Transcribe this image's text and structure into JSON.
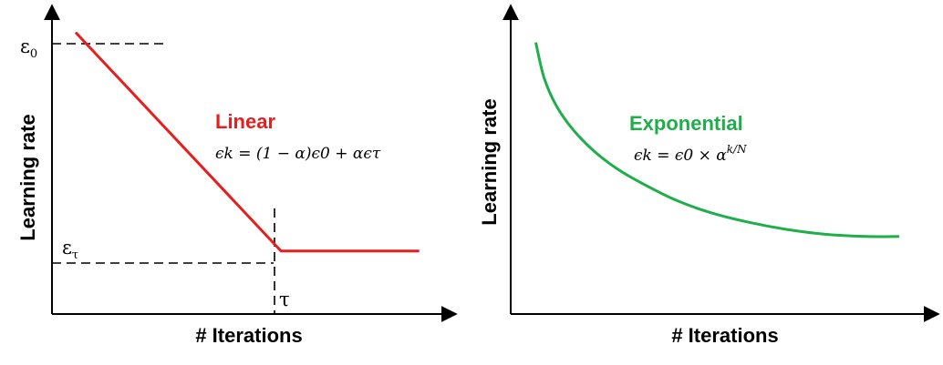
{
  "colors": {
    "linear": "#e61e1e",
    "exponential": "#1fae4a",
    "axis": "#000000"
  },
  "chart_data": [
    {
      "type": "line",
      "xlabel": "# Iterations",
      "ylabel": "Learning rate",
      "series": [
        {
          "name": "Linear",
          "formula": "ϵk = (1 − α)ϵ0 + αϵτ",
          "points": [
            [
              0.06,
              0.96
            ],
            [
              0.58,
              0.2
            ],
            [
              0.93,
              0.2
            ]
          ]
        }
      ],
      "y_ticks": [
        {
          "label": "ε",
          "sub": "0",
          "value": 0.96
        },
        {
          "label": "ε",
          "sub": "τ",
          "value": 0.2
        }
      ],
      "x_ticks": [
        {
          "label": "τ",
          "value": 0.58
        }
      ]
    },
    {
      "type": "line",
      "xlabel": "# Iterations",
      "ylabel": "Learning rate",
      "series": [
        {
          "name": "Exponential",
          "formula": "ϵk = ϵ0 × α",
          "formula_exponent": "k/N",
          "points": [
            [
              0.06,
              0.99
            ],
            [
              0.08,
              0.84
            ],
            [
              0.11,
              0.72
            ],
            [
              0.15,
              0.62
            ],
            [
              0.2,
              0.53
            ],
            [
              0.26,
              0.45
            ],
            [
              0.33,
              0.38
            ],
            [
              0.4,
              0.32
            ],
            [
              0.48,
              0.27
            ],
            [
              0.57,
              0.23
            ],
            [
              0.66,
              0.2
            ],
            [
              0.75,
              0.18
            ],
            [
              0.85,
              0.17
            ],
            [
              0.93,
              0.17
            ]
          ]
        }
      ]
    }
  ]
}
